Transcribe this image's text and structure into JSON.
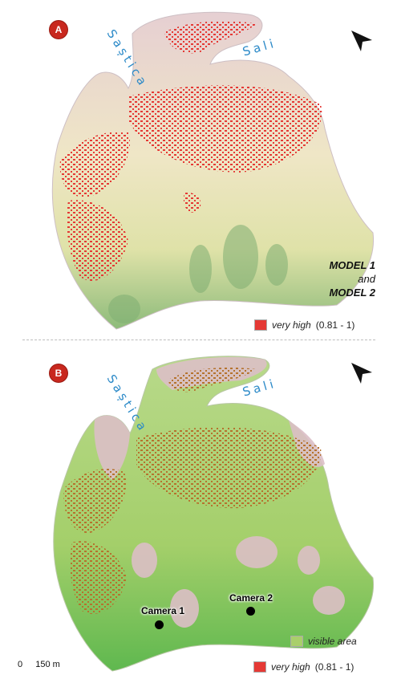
{
  "panel_a": {
    "badge": "A",
    "rivers": [
      "Saștica",
      "Sali"
    ],
    "model_lines": [
      "MODEL 1",
      "and",
      "MODEL 2"
    ],
    "legend": {
      "label": "very high",
      "range": "(0.81 - 1)",
      "color": "#e53935"
    }
  },
  "panel_b": {
    "badge": "B",
    "rivers": [
      "Saștica",
      "Sali"
    ],
    "cameras": [
      "Camera 1",
      "Camera 2"
    ],
    "legend": [
      {
        "label": "visible area",
        "range": "",
        "color": "#a9cf6b"
      },
      {
        "label": "very high",
        "range": "(0.81 - 1)",
        "color": "#e53935"
      }
    ],
    "scale": {
      "start": "0",
      "end": "150 m"
    }
  },
  "icons": [
    "north-arrow-icon"
  ],
  "colors": {
    "badge": "#c8281e",
    "river_label": "#2c8ac8",
    "high_risk": "#e53935",
    "visible": "#a9cf6b",
    "terrain_low": "#6aa86a",
    "terrain_mid": "#e8e3b8",
    "terrain_high": "#d9b7be"
  }
}
